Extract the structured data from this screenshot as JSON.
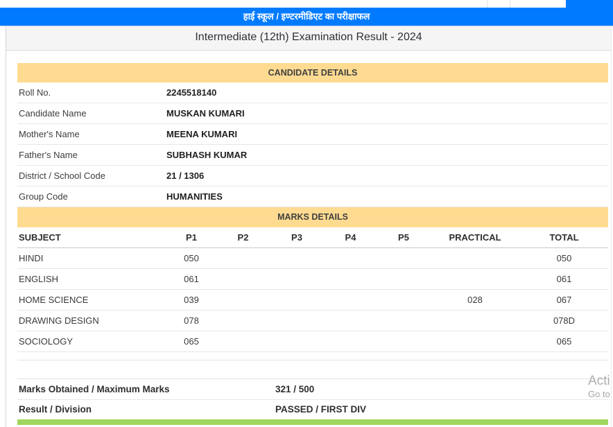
{
  "window": {
    "partial_blue_button_color": "#007BFF"
  },
  "header": {
    "banner_hindi": "हाई स्कूल / इण्टरमीडिएट का परीक्षाफल",
    "page_title": "Intermediate (12th) Examination Result - 2024"
  },
  "candidate_details": {
    "section_title": "CANDIDATE DETAILS",
    "fields": [
      {
        "label": "Roll No.",
        "value": "2245518140"
      },
      {
        "label": "Candidate Name",
        "value": "MUSKAN KUMARI"
      },
      {
        "label": "Mother's Name",
        "value": "MEENA KUMARI"
      },
      {
        "label": "Father's Name",
        "value": "SUBHASH KUMAR"
      },
      {
        "label": "District / School Code",
        "value": "21 / 1306"
      },
      {
        "label": "Group Code",
        "value": "HUMANITIES"
      }
    ]
  },
  "marks_details": {
    "section_title": "MARKS DETAILS",
    "columns": [
      "SUBJECT",
      "P1",
      "P2",
      "P3",
      "P4",
      "P5",
      "PRACTICAL",
      "TOTAL"
    ],
    "rows": [
      {
        "subject": "HINDI",
        "p1": "050",
        "p2": "",
        "p3": "",
        "p4": "",
        "p5": "",
        "practical": "",
        "total": "050"
      },
      {
        "subject": "ENGLISH",
        "p1": "061",
        "p2": "",
        "p3": "",
        "p4": "",
        "p5": "",
        "practical": "",
        "total": "061"
      },
      {
        "subject": "HOME SCIENCE",
        "p1": "039",
        "p2": "",
        "p3": "",
        "p4": "",
        "p5": "",
        "practical": "028",
        "total": "067"
      },
      {
        "subject": "DRAWING DESIGN",
        "p1": "078",
        "p2": "",
        "p3": "",
        "p4": "",
        "p5": "",
        "practical": "",
        "total": "078D"
      },
      {
        "subject": "SOCIOLOGY",
        "p1": "065",
        "p2": "",
        "p3": "",
        "p4": "",
        "p5": "",
        "practical": "",
        "total": "065"
      }
    ]
  },
  "summary": {
    "rows": [
      {
        "label": "Marks Obtained / Maximum Marks",
        "value": "321 / 500"
      },
      {
        "label": "Result / Division",
        "value": "PASSED / FIRST DIV"
      }
    ]
  },
  "watermark": {
    "line1": "Acti",
    "line2": "Go to"
  },
  "colors": {
    "banner_blue": "#007BFF",
    "section_tan": "#FFDB92",
    "footer_green": "#9FD65D"
  }
}
